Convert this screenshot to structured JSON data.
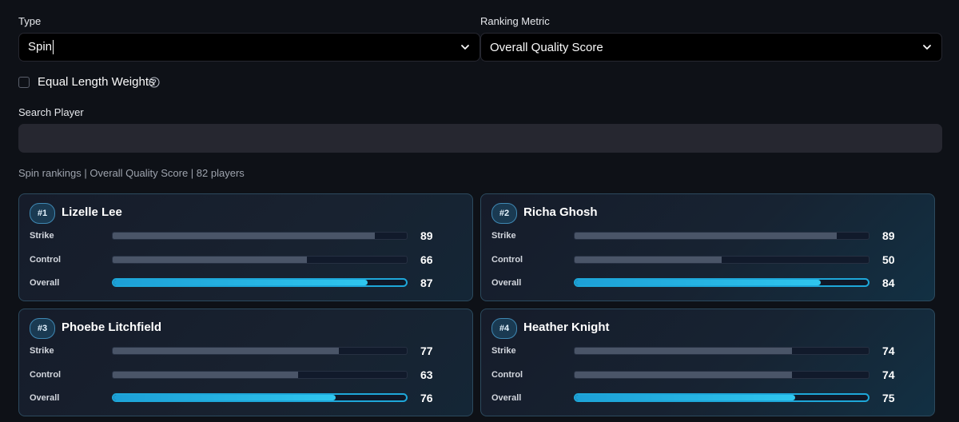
{
  "filters": {
    "type_label": "Type",
    "type_value": "Spin",
    "metric_label": "Ranking Metric",
    "metric_value": "Overall Quality Score",
    "equal_weights_label": "Equal Length Weights",
    "equal_weights_checked": false,
    "search_label": "Search Player",
    "search_value": ""
  },
  "summary": "Spin rankings | Overall Quality Score | 82 players",
  "colors": {
    "accent": "#1ea7d9",
    "background": "#0e1117",
    "card_border": "#2c4a5e"
  },
  "players": [
    {
      "rank": "#1",
      "name": "Lizelle Lee",
      "metrics": [
        {
          "label": "Strike",
          "value": 89
        },
        {
          "label": "Control",
          "value": 66
        },
        {
          "label": "Overall",
          "value": 87
        }
      ]
    },
    {
      "rank": "#2",
      "name": "Richa Ghosh",
      "metrics": [
        {
          "label": "Strike",
          "value": 89
        },
        {
          "label": "Control",
          "value": 50
        },
        {
          "label": "Overall",
          "value": 84
        }
      ]
    },
    {
      "rank": "#3",
      "name": "Phoebe Litchfield",
      "metrics": [
        {
          "label": "Strike",
          "value": 77
        },
        {
          "label": "Control",
          "value": 63
        },
        {
          "label": "Overall",
          "value": 76
        }
      ]
    },
    {
      "rank": "#4",
      "name": "Heather Knight",
      "metrics": [
        {
          "label": "Strike",
          "value": 74
        },
        {
          "label": "Control",
          "value": 74
        },
        {
          "label": "Overall",
          "value": 75
        }
      ]
    }
  ]
}
